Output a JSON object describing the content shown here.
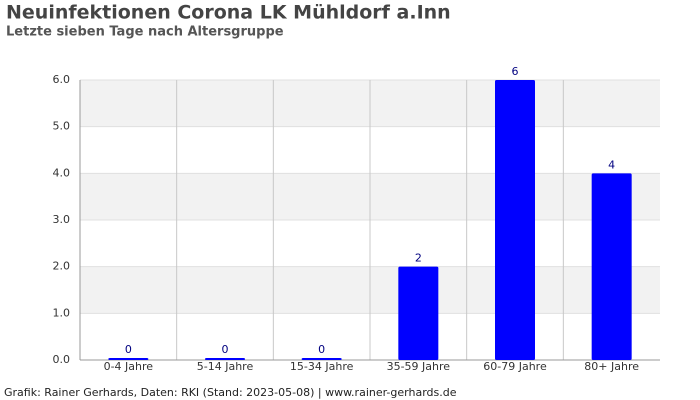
{
  "chart_data": {
    "type": "bar",
    "title": "Neuinfektionen Corona LK Mühldorf a.Inn",
    "subtitle": "Letzte sieben Tage nach Altersgruppe",
    "footer": "Grafik: Rainer Gerhards, Daten: RKI (Stand: 2023-05-08) | www.rainer-gerhards.de",
    "categories": [
      "0-4 Jahre",
      "5-14 Jahre",
      "15-34 Jahre",
      "35-59 Jahre",
      "60-79 Jahre",
      "80+ Jahre"
    ],
    "values": [
      0,
      0,
      0,
      2,
      6,
      4
    ],
    "color": "#0000ff",
    "ylim": [
      0,
      6
    ],
    "yticks": [
      {
        "value": 0,
        "label": "0.0"
      },
      {
        "value": 1,
        "label": "1.0"
      },
      {
        "value": 2,
        "label": "2.0"
      },
      {
        "value": 3,
        "label": "3.0"
      },
      {
        "value": 4,
        "label": "4.0"
      },
      {
        "value": 5,
        "label": "5.0"
      },
      {
        "value": 6,
        "label": "6.0"
      }
    ],
    "grid": true
  }
}
